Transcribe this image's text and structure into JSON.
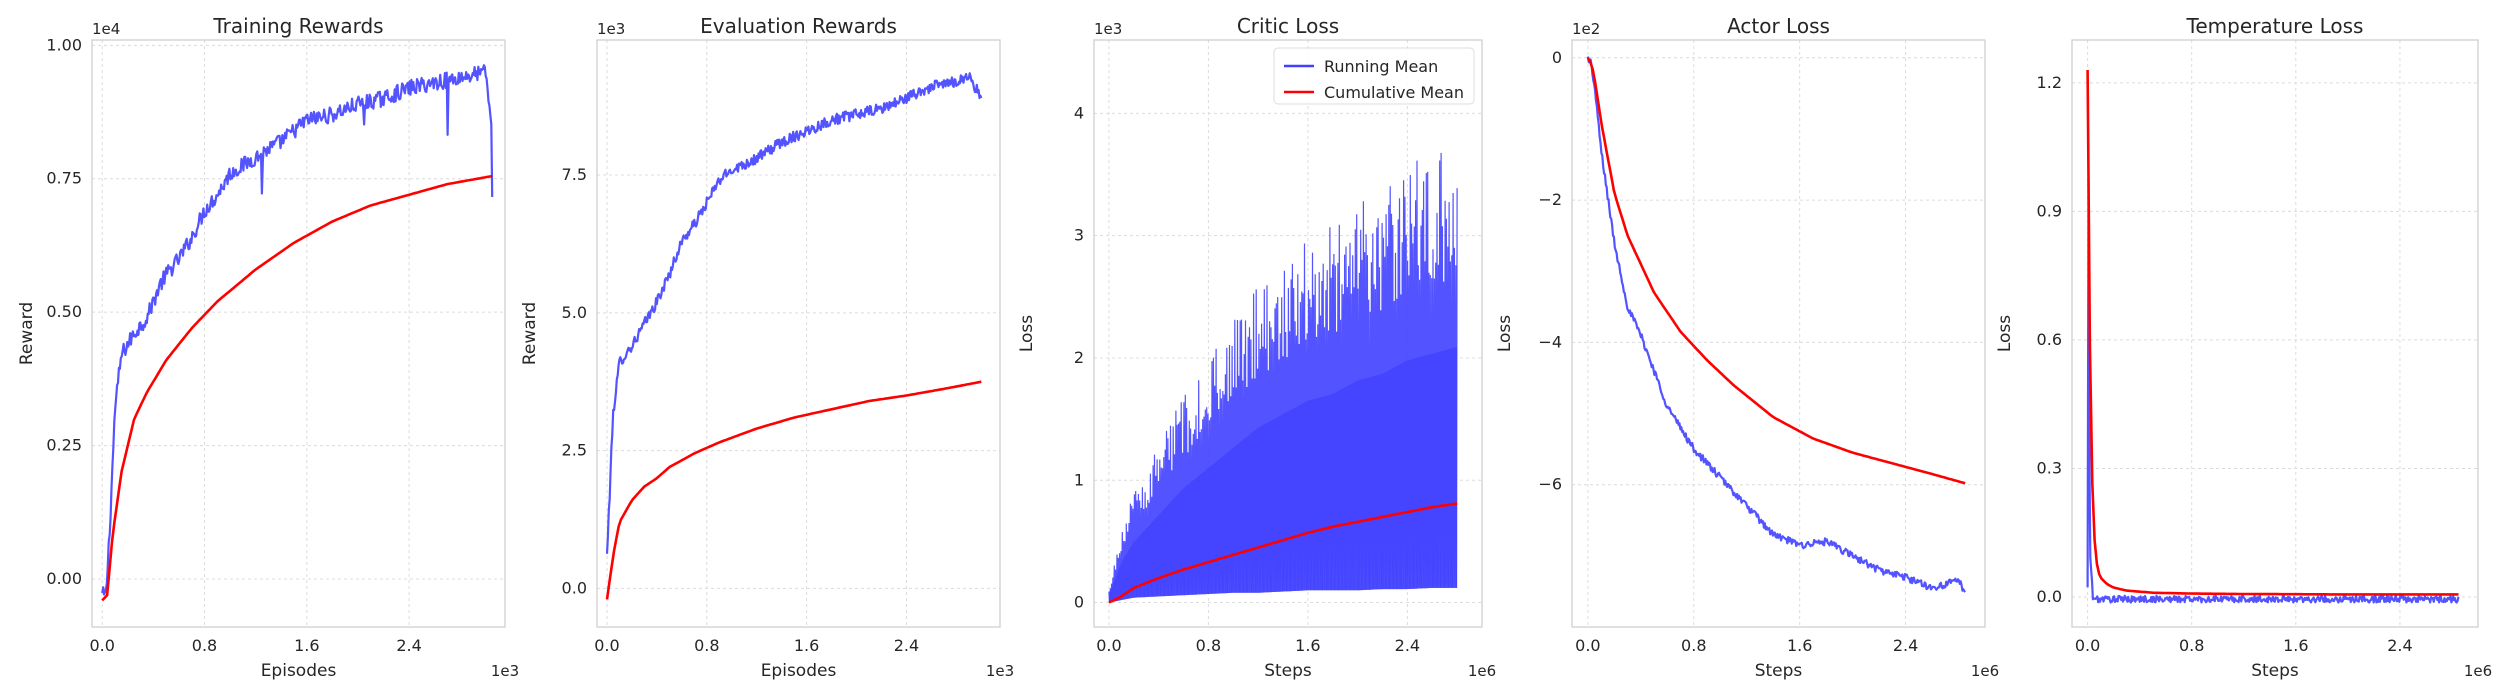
{
  "colors": {
    "running": "#4040ff",
    "cumulative": "#ff0000",
    "grid": "#dcdcdc",
    "frame": "#cccccc"
  },
  "chart_data": [
    {
      "type": "line",
      "title": "Training Rewards",
      "xlabel": "Episodes",
      "ylabel": "Reward",
      "x_offset_label": "1e3",
      "y_offset_label": "1e4",
      "xlim": [
        -0.08,
        3.15
      ],
      "ylim": [
        -0.09,
        1.01
      ],
      "xticks": [
        0.0,
        0.8,
        1.6,
        2.4
      ],
      "xtick_labels": [
        "0.0",
        "0.8",
        "1.6",
        "2.4"
      ],
      "yticks": [
        0.0,
        0.25,
        0.5,
        0.75,
        1.0
      ],
      "ytick_labels": [
        "0.00",
        "0.25",
        "0.50",
        "0.75",
        "1.00"
      ],
      "grid": true,
      "series": [
        {
          "role": "running",
          "noise": 0.015,
          "spikes": [
            [
              1.25,
              -0.08
            ],
            [
              2.05,
              -0.05
            ],
            [
              2.7,
              -0.1
            ],
            [
              3.05,
              -0.1
            ]
          ],
          "x": [
            0,
            0.03,
            0.06,
            0.1,
            0.15,
            0.25,
            0.35,
            0.45,
            0.5,
            0.6,
            0.7,
            0.8,
            0.9,
            1.0,
            1.2,
            1.4,
            1.6,
            1.8,
            2.0,
            2.2,
            2.4,
            2.6,
            2.8,
            3.0,
            3.05
          ],
          "y": [
            -0.03,
            -0.03,
            0.1,
            0.32,
            0.42,
            0.46,
            0.49,
            0.55,
            0.57,
            0.6,
            0.64,
            0.69,
            0.72,
            0.76,
            0.79,
            0.82,
            0.86,
            0.87,
            0.89,
            0.9,
            0.92,
            0.93,
            0.94,
            0.95,
            0.83
          ]
        },
        {
          "role": "cumulative",
          "noise": 0,
          "x": [
            0,
            0.04,
            0.08,
            0.15,
            0.25,
            0.35,
            0.5,
            0.7,
            0.9,
            1.2,
            1.5,
            1.8,
            2.1,
            2.4,
            2.7,
            3.05
          ],
          "y": [
            -0.04,
            -0.03,
            0.08,
            0.2,
            0.3,
            0.35,
            0.41,
            0.47,
            0.52,
            0.58,
            0.63,
            0.67,
            0.7,
            0.72,
            0.74,
            0.755
          ]
        }
      ]
    },
    {
      "type": "line",
      "title": "Evaluation Rewards",
      "xlabel": "Episodes",
      "ylabel": "Reward",
      "x_offset_label": "1e3",
      "y_offset_label": "1e3",
      "xlim": [
        -0.08,
        3.15
      ],
      "ylim": [
        -0.7,
        9.95
      ],
      "xticks": [
        0.0,
        0.8,
        1.6,
        2.4
      ],
      "xtick_labels": [
        "0.0",
        "0.8",
        "1.6",
        "2.4"
      ],
      "yticks": [
        0.0,
        2.5,
        5.0,
        7.5
      ],
      "ytick_labels": [
        "0.0",
        "2.5",
        "5.0",
        "7.5"
      ],
      "grid": true,
      "series": [
        {
          "role": "running",
          "noise": 0.1,
          "x": [
            0,
            0.05,
            0.1,
            0.2,
            0.3,
            0.4,
            0.5,
            0.6,
            0.7,
            0.8,
            0.9,
            1.0,
            1.2,
            1.4,
            1.6,
            1.8,
            2.0,
            2.2,
            2.4,
            2.6,
            2.8,
            2.9,
            3.0
          ],
          "y": [
            0.6,
            3.2,
            4.1,
            4.4,
            4.8,
            5.2,
            5.7,
            6.3,
            6.6,
            7.0,
            7.4,
            7.6,
            7.8,
            8.1,
            8.3,
            8.5,
            8.6,
            8.7,
            8.9,
            9.1,
            9.2,
            9.3,
            8.9
          ]
        },
        {
          "role": "cumulative",
          "noise": 0,
          "x": [
            0,
            0.05,
            0.1,
            0.2,
            0.3,
            0.4,
            0.5,
            0.7,
            0.9,
            1.2,
            1.5,
            1.8,
            2.1,
            2.4,
            2.7,
            3.0
          ],
          "y": [
            -0.2,
            0.6,
            1.2,
            1.6,
            1.85,
            2.0,
            2.2,
            2.45,
            2.65,
            2.9,
            3.1,
            3.25,
            3.4,
            3.5,
            3.62,
            3.75
          ]
        }
      ]
    },
    {
      "type": "line",
      "title": "Critic Loss",
      "xlabel": "Steps",
      "ylabel": "Loss",
      "x_offset_label": "1e6",
      "y_offset_label": "1e3",
      "xlim": [
        -0.12,
        3.0
      ],
      "ylim": [
        -0.2,
        4.6
      ],
      "xticks": [
        0.0,
        0.8,
        1.6,
        2.4
      ],
      "xtick_labels": [
        "0.0",
        "0.8",
        "1.6",
        "2.4"
      ],
      "yticks": [
        0,
        1,
        2,
        3,
        4
      ],
      "ytick_labels": [
        "0",
        "1",
        "2",
        "3",
        "4"
      ],
      "grid": true,
      "legend": {
        "position": "upper right",
        "entries": [
          "Running Mean",
          "Cumulative Mean"
        ]
      },
      "series": [
        {
          "role": "running",
          "style": "band",
          "x": [
            0,
            0.1,
            0.2,
            0.4,
            0.6,
            0.8,
            1.0,
            1.2,
            1.4,
            1.6,
            1.8,
            2.0,
            2.2,
            2.4,
            2.6,
            2.8
          ],
          "upper": [
            0.1,
            0.6,
            0.9,
            1.3,
            1.7,
            2.0,
            2.3,
            2.6,
            2.8,
            3.0,
            3.1,
            3.3,
            3.4,
            3.6,
            3.7,
            3.8
          ],
          "lower": [
            0.0,
            0.02,
            0.04,
            0.05,
            0.06,
            0.07,
            0.08,
            0.08,
            0.09,
            0.1,
            0.1,
            0.1,
            0.11,
            0.11,
            0.12,
            0.12
          ]
        },
        {
          "role": "cumulative",
          "noise": 0,
          "x": [
            0,
            0.1,
            0.2,
            0.4,
            0.6,
            0.8,
            1.0,
            1.2,
            1.4,
            1.6,
            1.8,
            2.0,
            2.2,
            2.4,
            2.6,
            2.8
          ],
          "y": [
            0.0,
            0.05,
            0.12,
            0.2,
            0.27,
            0.33,
            0.39,
            0.45,
            0.51,
            0.57,
            0.62,
            0.66,
            0.7,
            0.74,
            0.78,
            0.81
          ]
        }
      ]
    },
    {
      "type": "line",
      "title": "Actor Loss",
      "xlabel": "Steps",
      "ylabel": "Loss",
      "x_offset_label": "1e6",
      "y_offset_label": "1e2",
      "xlim": [
        -0.12,
        3.0
      ],
      "ylim": [
        -8.0,
        0.25
      ],
      "xticks": [
        0.0,
        0.8,
        1.6,
        2.4
      ],
      "xtick_labels": [
        "0.0",
        "0.8",
        "1.6",
        "2.4"
      ],
      "yticks": [
        0,
        -2,
        -4,
        -6
      ],
      "ytick_labels": [
        "0",
        "−2",
        "−4",
        "−6"
      ],
      "grid": true,
      "series": [
        {
          "role": "running",
          "noise": 0.05,
          "x": [
            0,
            0.02,
            0.05,
            0.1,
            0.2,
            0.3,
            0.4,
            0.5,
            0.6,
            0.7,
            0.8,
            1.0,
            1.2,
            1.4,
            1.6,
            1.8,
            2.0,
            2.2,
            2.4,
            2.6,
            2.8,
            2.85
          ],
          "y": [
            0,
            -0.05,
            -0.4,
            -1.3,
            -2.6,
            -3.5,
            -3.9,
            -4.4,
            -4.9,
            -5.2,
            -5.5,
            -5.9,
            -6.3,
            -6.7,
            -6.85,
            -6.8,
            -7.0,
            -7.2,
            -7.3,
            -7.45,
            -7.35,
            -7.5
          ]
        },
        {
          "role": "cumulative",
          "noise": 0,
          "x": [
            0,
            0.03,
            0.06,
            0.1,
            0.2,
            0.3,
            0.5,
            0.7,
            0.9,
            1.1,
            1.4,
            1.7,
            2.0,
            2.3,
            2.6,
            2.85
          ],
          "y": [
            0,
            -0.1,
            -0.4,
            -0.9,
            -1.9,
            -2.5,
            -3.3,
            -3.85,
            -4.25,
            -4.6,
            -5.05,
            -5.35,
            -5.55,
            -5.7,
            -5.85,
            -5.98
          ]
        }
      ]
    },
    {
      "type": "line",
      "title": "Temperature Loss",
      "xlabel": "Steps",
      "ylabel": "Loss",
      "x_offset_label": "1e6",
      "y_offset_label": "",
      "xlim": [
        -0.12,
        3.0
      ],
      "ylim": [
        -0.07,
        1.3
      ],
      "xticks": [
        0.0,
        0.8,
        1.6,
        2.4
      ],
      "xtick_labels": [
        "0.0",
        "0.8",
        "1.6",
        "2.4"
      ],
      "yticks": [
        0.0,
        0.3,
        0.6,
        0.9,
        1.2
      ],
      "ytick_labels": [
        "0.0",
        "0.3",
        "0.6",
        "0.9",
        "1.2"
      ],
      "grid": true,
      "series": [
        {
          "role": "running",
          "noise": 0.008,
          "x": [
            0,
            0.005,
            0.01,
            0.02,
            0.04,
            0.06,
            0.1,
            0.2,
            0.5,
            1.0,
            1.5,
            2.0,
            2.5,
            2.85
          ],
          "y": [
            0.02,
            1.27,
            0.45,
            0.1,
            0.0,
            -0.005,
            -0.005,
            -0.005,
            -0.005,
            -0.005,
            -0.005,
            -0.005,
            -0.005,
            -0.005
          ]
        },
        {
          "role": "cumulative",
          "noise": 0,
          "x": [
            0,
            0.005,
            0.01,
            0.02,
            0.04,
            0.06,
            0.08,
            0.1,
            0.15,
            0.2,
            0.3,
            0.5,
            0.8,
            1.2,
            2.0,
            2.85
          ],
          "y": [
            1.23,
            1.2,
            0.9,
            0.5,
            0.2,
            0.1,
            0.06,
            0.045,
            0.03,
            0.022,
            0.015,
            0.01,
            0.008,
            0.007,
            0.006,
            0.006
          ]
        }
      ]
    }
  ]
}
